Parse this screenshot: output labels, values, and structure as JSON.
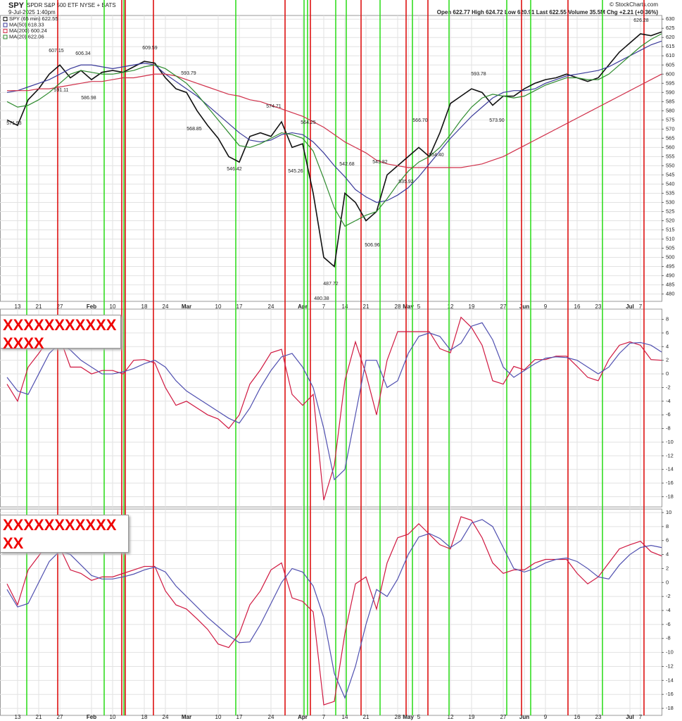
{
  "chart_data": [
    {
      "type": "line",
      "symbol": "SPY",
      "subtitle": "SPDR S&P 500 ETF  NYSE + BATS",
      "date": "9-Jul-2025 1:40pm",
      "source": "© StockCharts.com",
      "quote": "Open 622.77 High 624.72 Low 620.91 Last 622.55 Volume 35.5M Chg +2.21 (+0.36%)",
      "categories": [
        null,
        "13",
        null,
        "21",
        null,
        "27",
        null,
        null,
        "Feb",
        null,
        "10",
        null,
        null,
        "18",
        null,
        "24",
        null,
        "Mar",
        null,
        null,
        "10",
        null,
        "17",
        null,
        null,
        "24",
        null,
        null,
        "Apr",
        null,
        "7",
        null,
        "14",
        null,
        "21",
        null,
        null,
        "28",
        "May",
        "5",
        null,
        null,
        "12",
        null,
        "19",
        null,
        null,
        "27",
        null,
        "Jun",
        null,
        "9",
        null,
        null,
        "16",
        null,
        "23",
        null,
        null,
        "Jul",
        "7",
        null,
        null
      ],
      "series": [
        {
          "name": "SPY (65 min) 622.55",
          "color": "#111111",
          "values": [
            575,
            572,
            586,
            592,
            600,
            605,
            598,
            602,
            597,
            601,
            602,
            601,
            604,
            607,
            606,
            598,
            592,
            590,
            580,
            572,
            565,
            555,
            552,
            566,
            568,
            566,
            574,
            560,
            562,
            535,
            500,
            495,
            535,
            530,
            520,
            525,
            545,
            550,
            555,
            560,
            555,
            568,
            584,
            588,
            592,
            590,
            583,
            588,
            588,
            592,
            595,
            597,
            598,
            600,
            598,
            596,
            598,
            605,
            612,
            617,
            622,
            621,
            623
          ]
        },
        {
          "name": "MA(50) 618.33",
          "color": "#3a3a9a",
          "values": [
            590,
            591,
            593,
            595,
            597,
            600,
            603,
            605,
            605,
            604,
            603,
            604,
            605,
            606,
            605,
            600,
            596,
            592,
            588,
            583,
            578,
            573,
            568,
            564,
            563,
            564,
            567,
            568,
            567,
            563,
            557,
            550,
            544,
            537,
            533,
            530,
            531,
            534,
            538,
            544,
            551,
            558,
            565,
            571,
            577,
            582,
            587,
            590,
            591,
            591,
            592,
            595,
            597,
            599,
            600,
            601,
            602,
            604,
            607,
            610,
            613,
            616,
            618
          ]
        },
        {
          "name": "MA(200) 600.24",
          "color": "#d0304a",
          "values": [
            591,
            591,
            591,
            592,
            592,
            593,
            594,
            595,
            596,
            596,
            597,
            598,
            598,
            599,
            600,
            600,
            599,
            597,
            595,
            593,
            591,
            589,
            588,
            586,
            585,
            583,
            581,
            579,
            577,
            574,
            571,
            567,
            563,
            560,
            557,
            553,
            551,
            550,
            549,
            549,
            549,
            549,
            549,
            549,
            550,
            551,
            553,
            555,
            558,
            561,
            564,
            567,
            570,
            573,
            576,
            579,
            582,
            585,
            588,
            591,
            594,
            597,
            600
          ]
        },
        {
          "name": "MA(20) 622.06",
          "color": "#2e8b2e",
          "values": [
            585,
            582,
            583,
            586,
            590,
            595,
            600,
            602,
            601,
            600,
            600,
            601,
            602,
            604,
            605,
            603,
            599,
            595,
            589,
            582,
            575,
            568,
            561,
            560,
            562,
            565,
            568,
            567,
            565,
            558,
            543,
            527,
            517,
            520,
            523,
            525,
            532,
            540,
            547,
            552,
            555,
            560,
            567,
            575,
            582,
            587,
            589,
            588,
            587,
            588,
            591,
            594,
            596,
            598,
            598,
            597,
            597,
            600,
            605,
            610,
            615,
            619,
            622
          ]
        }
      ],
      "annotations": [
        "571.93",
        "607.15",
        "591.11",
        "606.34",
        "586.98",
        "609.59",
        "593.79",
        "568.85",
        "546.42",
        "574.71",
        "545.26",
        "564.25",
        "480.38",
        "487.72",
        "542.68",
        "543.82",
        "506.96",
        "535.92",
        "566.70",
        "554.40",
        "593.78",
        "573.90",
        "626.28"
      ],
      "ylim": [
        476,
        632
      ],
      "yticks": [
        480,
        485,
        490,
        495,
        500,
        505,
        510,
        515,
        520,
        525,
        530,
        535,
        540,
        545,
        550,
        555,
        560,
        565,
        570,
        575,
        580,
        585,
        590,
        595,
        600,
        605,
        610,
        615,
        620,
        625,
        630
      ],
      "grid": true
    },
    {
      "type": "line",
      "note": "XXXXXXXXXXXXXXX",
      "series": [
        {
          "color": "#d01840",
          "values": [
            -1.5,
            -4,
            1,
            3,
            5.2,
            5.3,
            1,
            1,
            0,
            0.5,
            0.5,
            0,
            2,
            2.1,
            1.6,
            -2,
            -4.6,
            -4,
            -5,
            -6,
            -6.6,
            -8,
            -6,
            -1.5,
            0.6,
            3.1,
            3.6,
            -3,
            -4.6,
            -3,
            -18.5,
            -13.4,
            -1,
            4.7,
            0,
            -6,
            2,
            6.2,
            6.2,
            6.2,
            6.2,
            3.7,
            3.1,
            8.3,
            6.8,
            4.2,
            -1,
            -1.5,
            1.1,
            0.6,
            2.1,
            2.1,
            2.6,
            2.6,
            1.1,
            -0.5,
            -1,
            2.1,
            4.2,
            4.7,
            4.2,
            2.1,
            2
          ]
        },
        {
          "color": "#5050b0",
          "values": [
            -0.5,
            -2.5,
            -3,
            0,
            3,
            4.5,
            3.5,
            2,
            1,
            0,
            0,
            0.3,
            0.8,
            1.5,
            2,
            1,
            -1,
            -2.5,
            -3.5,
            -4.5,
            -5.5,
            -6.5,
            -7.2,
            -5,
            -2,
            0.5,
            2.5,
            3,
            1,
            -2,
            -8,
            -15.5,
            -14,
            -6,
            2,
            2,
            -2,
            -1,
            3,
            5.5,
            6,
            5.5,
            3.5,
            4.5,
            7,
            7.5,
            5,
            1,
            -0.5,
            0.5,
            1.5,
            2.3,
            2.5,
            2.4,
            2,
            1,
            0,
            1,
            3,
            4.5,
            4.6,
            4.2,
            3.2
          ]
        }
      ],
      "ylim": [
        -19.5,
        9.5
      ],
      "yticks": [
        8,
        6,
        4,
        2,
        0,
        -2,
        -4,
        -6,
        -8,
        -10,
        -12,
        -14,
        -16,
        -18
      ],
      "grid": true
    },
    {
      "type": "line",
      "note": "XXXXXXXXXXXXX",
      "series": [
        {
          "color": "#d01840",
          "values": [
            -0.2,
            -3.2,
            1.8,
            3.8,
            5.9,
            5,
            1.8,
            1.3,
            0.3,
            0.8,
            0.8,
            1.3,
            1.8,
            2.3,
            2.3,
            -1.2,
            -3.2,
            -3.8,
            -5.2,
            -6.7,
            -8.8,
            -9.3,
            -7.3,
            -3.2,
            -1.2,
            1.8,
            2.8,
            -2.2,
            -2.7,
            -4.2,
            -17.5,
            -17,
            -7.3,
            -0.2,
            0.8,
            -3.8,
            2.8,
            6.4,
            6.9,
            8.4,
            6.9,
            5.4,
            4.8,
            9.4,
            8.9,
            6.4,
            2.8,
            1.3,
            1.8,
            1.8,
            2.8,
            3.3,
            3.3,
            3.3,
            1.3,
            -0.2,
            0.8,
            2.8,
            4.8,
            5.4,
            5.9,
            4.4,
            3.8
          ]
        },
        {
          "color": "#5050b0",
          "values": [
            -1,
            -3.5,
            -3,
            0,
            3,
            4.5,
            4,
            2.5,
            1,
            0.5,
            0.5,
            0.8,
            1.2,
            1.8,
            2.2,
            1.5,
            -0.5,
            -2,
            -3.5,
            -5,
            -6.3,
            -7.6,
            -8.6,
            -8.5,
            -6,
            -3,
            0,
            2,
            1.5,
            -0.5,
            -5,
            -13,
            -16.5,
            -12,
            -6,
            -1,
            -2,
            0.5,
            4,
            6.5,
            7,
            6.3,
            5,
            6,
            8.5,
            9,
            8,
            5,
            2,
            1.5,
            2,
            2.8,
            3.3,
            3.5,
            3,
            2,
            0.8,
            0.5,
            2.5,
            4,
            5,
            5.3,
            5
          ]
        }
      ],
      "ylim": [
        -19,
        10.5
      ],
      "yticks": [
        10,
        8,
        6,
        4,
        2,
        0,
        -2,
        -4,
        -6,
        -8,
        -10,
        -12,
        -14,
        -16,
        -18
      ],
      "grid": true
    }
  ]
}
